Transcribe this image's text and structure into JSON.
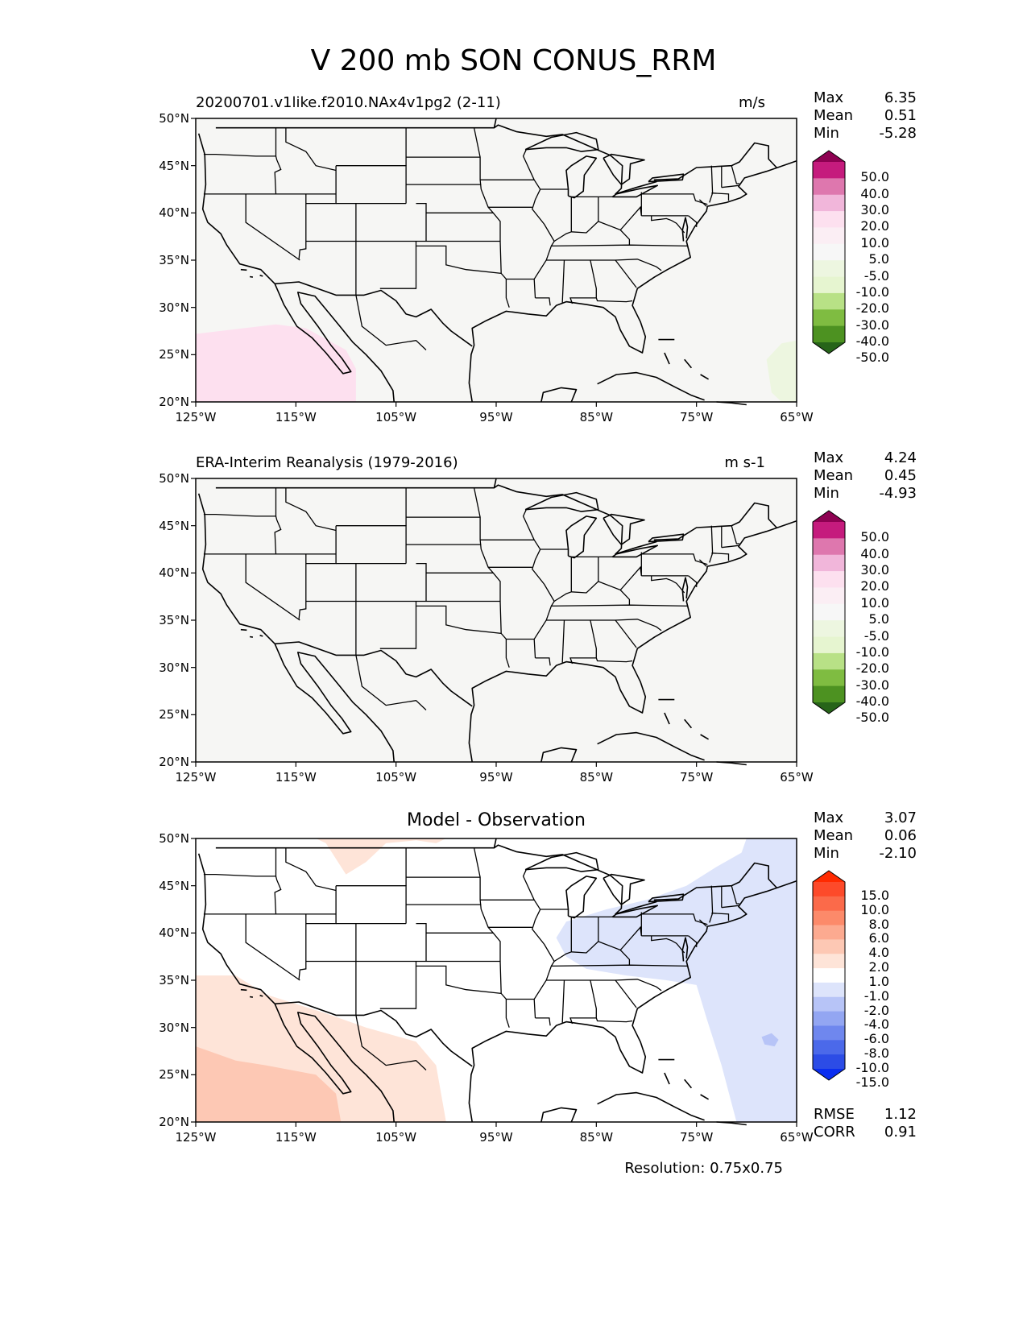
{
  "figure": {
    "title": "V 200 mb SON CONUS_RRM",
    "resolution_label": "Resolution: 0.75x0.75"
  },
  "axes": {
    "lat_ticks": [
      "50°N",
      "45°N",
      "40°N",
      "35°N",
      "30°N",
      "25°N",
      "20°N"
    ],
    "lon_ticks": [
      "125°W",
      "115°W",
      "105°W",
      "95°W",
      "85°W",
      "75°W",
      "65°W"
    ],
    "lon_range": [
      -125,
      -65
    ],
    "lat_range": [
      20,
      50
    ]
  },
  "panels": [
    {
      "id": "model",
      "label": "20200701.v1like.f2010.NAx4v1pg2 (2-11)",
      "units": "m/s",
      "stats": {
        "max_label": "Max",
        "max": "6.35",
        "mean_label": "Mean",
        "mean": "0.51",
        "min_label": "Min",
        "min": "-5.28"
      },
      "colorbar": {
        "labels": [
          "50.0",
          "40.0",
          "30.0",
          "20.0",
          "10.0",
          "5.0",
          "-5.0",
          "-10.0",
          "-20.0",
          "-30.0",
          "-40.0",
          "-50.0"
        ],
        "colors": [
          "#8e0152",
          "#c51b7d",
          "#de77ae",
          "#f1b6da",
          "#fde0ef",
          "#fbeef4",
          "#f7f7f7",
          "#edf6e0",
          "#e6f5d0",
          "#b8e186",
          "#7fbc41",
          "#4d9221",
          "#276419"
        ]
      },
      "background_color": "#f6f6f4"
    },
    {
      "id": "obs",
      "label": "ERA-Interim Reanalysis (1979-2016)",
      "units": "m s-1",
      "stats": {
        "max_label": "Max",
        "max": "4.24",
        "mean_label": "Mean",
        "mean": "0.45",
        "min_label": "Min",
        "min": "-4.93"
      },
      "colorbar": {
        "labels": [
          "50.0",
          "40.0",
          "30.0",
          "20.0",
          "10.0",
          "5.0",
          "-5.0",
          "-10.0",
          "-20.0",
          "-30.0",
          "-40.0",
          "-50.0"
        ],
        "colors": [
          "#8e0152",
          "#c51b7d",
          "#de77ae",
          "#f1b6da",
          "#fde0ef",
          "#fbeef4",
          "#f7f7f7",
          "#edf6e0",
          "#e6f5d0",
          "#b8e186",
          "#7fbc41",
          "#4d9221",
          "#276419"
        ]
      },
      "background_color": "#f6f6f4"
    },
    {
      "id": "diff",
      "title": "Model - Observation",
      "stats": {
        "max_label": "Max",
        "max": "3.07",
        "mean_label": "Mean",
        "mean": "0.06",
        "min_label": "Min",
        "min": "-2.10"
      },
      "colorbar": {
        "labels": [
          "15.0",
          "10.0",
          "8.0",
          "6.0",
          "4.0",
          "2.0",
          "1.0",
          "-1.0",
          "-2.0",
          "-4.0",
          "-6.0",
          "-8.0",
          "-10.0",
          "-15.0"
        ],
        "colors": [
          "#ff2a00",
          "#fd4a2a",
          "#fb6a4a",
          "#fc8a6a",
          "#fcaa90",
          "#fdc8b4",
          "#fee4d8",
          "#ffffff",
          "#dde4fb",
          "#b7c4f7",
          "#93a6f2",
          "#6f87ee",
          "#4b69ea",
          "#2c4ce6",
          "#0a2df0"
        ]
      },
      "footer_stats": {
        "rmse_label": "RMSE",
        "rmse": "1.12",
        "corr_label": "CORR",
        "corr": "0.91"
      },
      "background_color": "#ffffff"
    }
  ]
}
